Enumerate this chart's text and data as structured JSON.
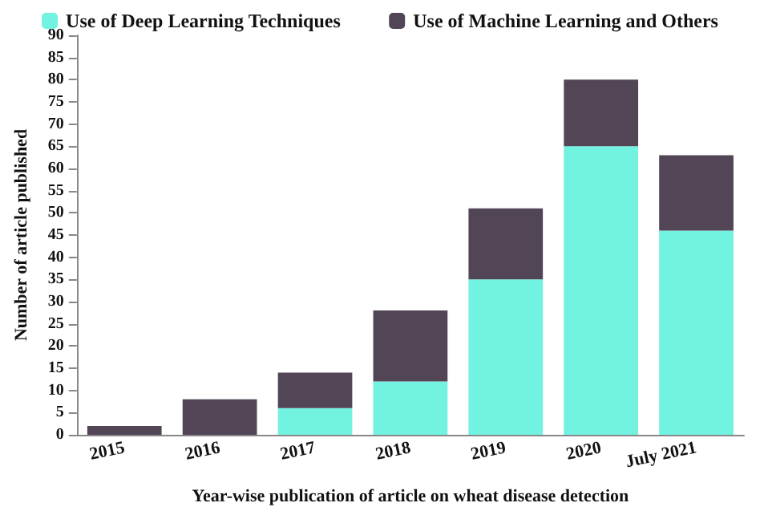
{
  "chart_data": {
    "type": "bar",
    "stacked": true,
    "xlabel": "Year-wise publication of article on wheat disease detection",
    "ylabel": "Number of article published",
    "categories": [
      "2015",
      "2016",
      "2017",
      "2018",
      "2019",
      "2020",
      "July 2021"
    ],
    "series": [
      {
        "name": "Use of Deep Learning Techniques",
        "color": "#72f2e0",
        "values": [
          0,
          0,
          6,
          12,
          35,
          65,
          46
        ]
      },
      {
        "name": "Use of Machine Learning and Others",
        "color": "#524656",
        "values": [
          2,
          8,
          8,
          16,
          16,
          15,
          17
        ]
      }
    ],
    "ylim": [
      0,
      90
    ],
    "yticks": [
      0,
      5,
      10,
      15,
      20,
      25,
      30,
      35,
      40,
      45,
      50,
      55,
      60,
      65,
      70,
      75,
      80,
      85,
      90
    ],
    "grid": false,
    "legend": "top"
  }
}
